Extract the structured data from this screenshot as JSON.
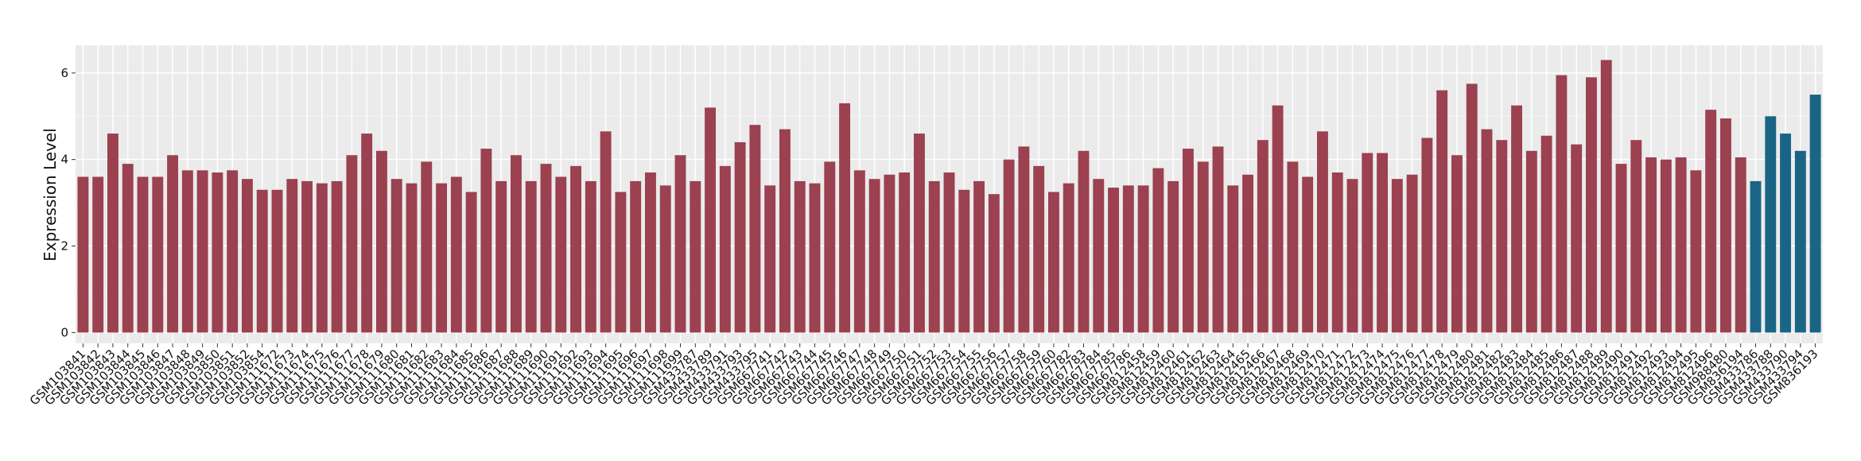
{
  "chart_data": {
    "type": "bar",
    "y_label": "Expression Level",
    "categories": [
      "GSM103841",
      "GSM103842",
      "GSM103843",
      "GSM103844",
      "GSM103845",
      "GSM103846",
      "GSM103847",
      "GSM103848",
      "GSM103849",
      "GSM103850",
      "GSM103851",
      "GSM103852",
      "GSM103854",
      "GSM111672",
      "GSM111673",
      "GSM111674",
      "GSM111675",
      "GSM111676",
      "GSM111677",
      "GSM111678",
      "GSM111679",
      "GSM111680",
      "GSM111681",
      "GSM111682",
      "GSM111683",
      "GSM111684",
      "GSM111685",
      "GSM111686",
      "GSM111687",
      "GSM111688",
      "GSM111689",
      "GSM111690",
      "GSM111691",
      "GSM111692",
      "GSM111693",
      "GSM111694",
      "GSM111695",
      "GSM111696",
      "GSM111697",
      "GSM111698",
      "GSM111699",
      "GSM433787",
      "GSM433789",
      "GSM433791",
      "GSM433793",
      "GSM433795",
      "GSM667741",
      "GSM667742",
      "GSM667743",
      "GSM667744",
      "GSM667745",
      "GSM667746",
      "GSM667747",
      "GSM667748",
      "GSM667749",
      "GSM667750",
      "GSM667751",
      "GSM667752",
      "GSM667753",
      "GSM667754",
      "GSM667755",
      "GSM667756",
      "GSM667757",
      "GSM667758",
      "GSM667759",
      "GSM667760",
      "GSM667782",
      "GSM667783",
      "GSM667784",
      "GSM667785",
      "GSM667786",
      "GSM812458",
      "GSM812459",
      "GSM812460",
      "GSM812461",
      "GSM812462",
      "GSM812463",
      "GSM812464",
      "GSM812465",
      "GSM812466",
      "GSM812467",
      "GSM812468",
      "GSM812469",
      "GSM812470",
      "GSM812471",
      "GSM812472",
      "GSM812473",
      "GSM812474",
      "GSM812475",
      "GSM812476",
      "GSM812477",
      "GSM812478",
      "GSM812479",
      "GSM812480",
      "GSM812481",
      "GSM812482",
      "GSM812483",
      "GSM812484",
      "GSM812485",
      "GSM812486",
      "GSM812487",
      "GSM812488",
      "GSM812489",
      "GSM812490",
      "GSM812491",
      "GSM812492",
      "GSM812493",
      "GSM812494",
      "GSM812495",
      "GSM812496",
      "GSM988480",
      "GSM836194",
      "GSM433786",
      "GSM433788",
      "GSM433790",
      "GSM433794",
      "GSM836193"
    ],
    "values": [
      3.6,
      3.6,
      4.6,
      3.9,
      3.6,
      3.6,
      4.1,
      3.75,
      3.75,
      3.7,
      3.75,
      3.55,
      3.3,
      3.3,
      3.55,
      3.5,
      3.45,
      3.5,
      4.1,
      4.6,
      4.2,
      3.55,
      3.45,
      3.95,
      3.45,
      3.6,
      3.25,
      4.25,
      3.5,
      4.1,
      3.5,
      3.9,
      3.6,
      3.85,
      3.5,
      4.65,
      3.25,
      3.5,
      3.7,
      3.4,
      4.1,
      3.5,
      5.2,
      3.85,
      4.4,
      4.8,
      3.4,
      4.7,
      3.5,
      3.45,
      3.95,
      5.3,
      3.75,
      3.55,
      3.65,
      3.7,
      4.6,
      3.5,
      3.7,
      3.3,
      3.5,
      3.2,
      4.0,
      4.3,
      3.85,
      3.25,
      3.45,
      4.2,
      3.55,
      3.35,
      3.4,
      3.4,
      3.8,
      3.5,
      4.25,
      3.95,
      4.3,
      3.4,
      3.65,
      4.45,
      5.25,
      3.95,
      3.6,
      4.65,
      3.7,
      3.55,
      4.15,
      4.15,
      3.55,
      3.65,
      4.5,
      5.6,
      4.1,
      5.75,
      4.7,
      4.45,
      5.25,
      4.2,
      4.55,
      5.95,
      4.35,
      5.9,
      6.3,
      3.9,
      4.45,
      4.05,
      4.0,
      4.05,
      3.75,
      5.15,
      4.95,
      4.05,
      3.5,
      5.0,
      4.6,
      4.2,
      5.5
    ],
    "colors": [
      "#9b4150",
      "#9b4150",
      "#9b4150",
      "#9b4150",
      "#9b4150",
      "#9b4150",
      "#9b4150",
      "#9b4150",
      "#9b4150",
      "#9b4150",
      "#9b4150",
      "#9b4150",
      "#9b4150",
      "#9b4150",
      "#9b4150",
      "#9b4150",
      "#9b4150",
      "#9b4150",
      "#9b4150",
      "#9b4150",
      "#9b4150",
      "#9b4150",
      "#9b4150",
      "#9b4150",
      "#9b4150",
      "#9b4150",
      "#9b4150",
      "#9b4150",
      "#9b4150",
      "#9b4150",
      "#9b4150",
      "#9b4150",
      "#9b4150",
      "#9b4150",
      "#9b4150",
      "#9b4150",
      "#9b4150",
      "#9b4150",
      "#9b4150",
      "#9b4150",
      "#9b4150",
      "#9b4150",
      "#9b4150",
      "#9b4150",
      "#9b4150",
      "#9b4150",
      "#9b4150",
      "#9b4150",
      "#9b4150",
      "#9b4150",
      "#9b4150",
      "#9b4150",
      "#9b4150",
      "#9b4150",
      "#9b4150",
      "#9b4150",
      "#9b4150",
      "#9b4150",
      "#9b4150",
      "#9b4150",
      "#9b4150",
      "#9b4150",
      "#9b4150",
      "#9b4150",
      "#9b4150",
      "#9b4150",
      "#9b4150",
      "#9b4150",
      "#9b4150",
      "#9b4150",
      "#9b4150",
      "#9b4150",
      "#9b4150",
      "#9b4150",
      "#9b4150",
      "#9b4150",
      "#9b4150",
      "#9b4150",
      "#9b4150",
      "#9b4150",
      "#9b4150",
      "#9b4150",
      "#9b4150",
      "#9b4150",
      "#9b4150",
      "#9b4150",
      "#9b4150",
      "#9b4150",
      "#9b4150",
      "#9b4150",
      "#9b4150",
      "#9b4150",
      "#9b4150",
      "#9b4150",
      "#9b4150",
      "#9b4150",
      "#9b4150",
      "#9b4150",
      "#9b4150",
      "#9b4150",
      "#9b4150",
      "#9b4150",
      "#9b4150",
      "#9b4150",
      "#9b4150",
      "#9b4150",
      "#9b4150",
      "#9b4150",
      "#9b4150",
      "#9b4150",
      "#9b4150",
      "#9b4150",
      "#1a6585",
      "#1a6585",
      "#1a6585",
      "#1a6585",
      "#1a6585"
    ],
    "ylim": [
      -0.25,
      6.64
    ],
    "yticks": [
      0,
      2,
      4,
      6
    ],
    "grid": true
  }
}
